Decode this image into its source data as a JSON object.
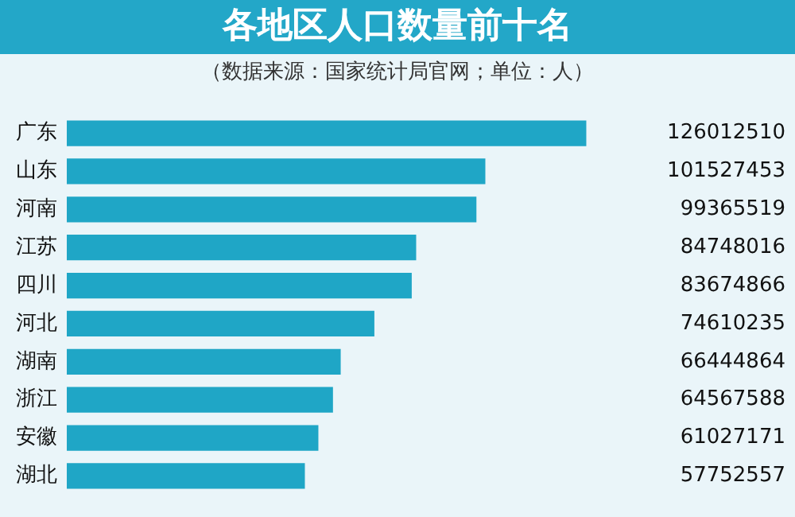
{
  "chart_data": {
    "type": "bar",
    "orientation": "horizontal",
    "title": "各地区人口数量前十名",
    "subtitle": "（数据来源：国家统计局官网；单位：人）",
    "categories": [
      "广东",
      "山东",
      "河南",
      "江苏",
      "四川",
      "河北",
      "湖南",
      "浙江",
      "安徽",
      "湖北"
    ],
    "values": [
      126012510,
      101527453,
      99365519,
      84748016,
      83674866,
      74610235,
      66444864,
      64567588,
      61027171,
      57752557
    ],
    "color": "#1fa6c6",
    "data_labels": true,
    "grid": false,
    "legend": false
  }
}
